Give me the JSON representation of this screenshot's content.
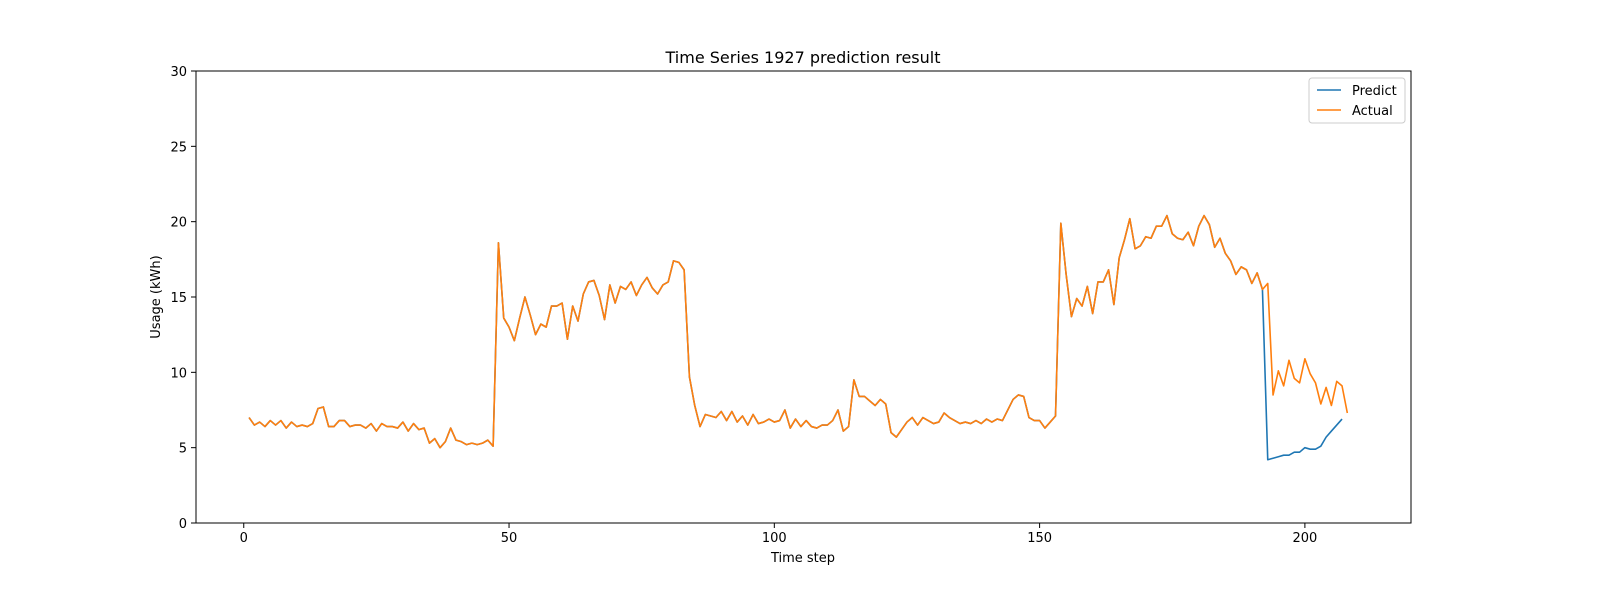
{
  "chart_data": {
    "type": "line",
    "title": "Time Series 1927 prediction result",
    "xlabel": "Time step",
    "ylabel": "Usage (kWh)",
    "xlim": [
      -9,
      220
    ],
    "ylim": [
      0,
      30
    ],
    "x_ticks": [
      0,
      50,
      100,
      150,
      200
    ],
    "y_ticks": [
      0,
      5,
      10,
      15,
      20,
      25,
      30
    ],
    "grid": false,
    "legend_position": "top-right",
    "x_start": 1,
    "series": [
      {
        "name": "Predict",
        "color": "#1f77b4",
        "values": [
          7.0,
          6.5,
          6.7,
          6.4,
          6.8,
          6.5,
          6.8,
          6.3,
          6.7,
          6.4,
          6.5,
          6.4,
          6.6,
          7.6,
          7.7,
          6.4,
          6.4,
          6.8,
          6.8,
          6.4,
          6.5,
          6.5,
          6.3,
          6.6,
          6.1,
          6.6,
          6.4,
          6.4,
          6.3,
          6.7,
          6.1,
          6.6,
          6.2,
          6.3,
          5.3,
          5.6,
          5.0,
          5.4,
          6.3,
          5.5,
          5.4,
          5.2,
          5.3,
          5.2,
          5.3,
          5.5,
          5.1,
          18.6,
          13.6,
          13.0,
          12.1,
          13.6,
          15.0,
          13.8,
          12.5,
          13.2,
          13.0,
          14.4,
          14.4,
          14.6,
          12.2,
          14.4,
          13.4,
          15.2,
          16.0,
          16.1,
          15.1,
          13.5,
          15.8,
          14.6,
          15.7,
          15.5,
          16.0,
          15.1,
          15.8,
          16.3,
          15.6,
          15.2,
          15.8,
          16.0,
          17.4,
          17.3,
          16.8,
          9.7,
          7.8,
          6.4,
          7.2,
          7.1,
          7.0,
          7.4,
          6.8,
          7.4,
          6.7,
          7.1,
          6.5,
          7.2,
          6.6,
          6.7,
          6.9,
          6.7,
          6.8,
          7.5,
          6.3,
          6.9,
          6.4,
          6.8,
          6.4,
          6.3,
          6.5,
          6.5,
          6.8,
          7.5,
          6.1,
          6.4,
          9.5,
          8.4,
          8.4,
          8.1,
          7.8,
          8.2,
          7.9,
          6.0,
          5.7,
          6.2,
          6.7,
          7.0,
          6.5,
          7.0,
          6.8,
          6.6,
          6.7,
          7.3,
          7.0,
          6.8,
          6.6,
          6.7,
          6.6,
          6.8,
          6.6,
          6.9,
          6.7,
          6.9,
          6.8,
          7.5,
          8.2,
          8.5,
          8.4,
          7.0,
          6.8,
          6.8,
          6.3,
          6.7,
          7.1,
          19.9,
          16.5,
          13.7,
          14.9,
          14.4,
          15.7,
          13.9,
          16.0,
          16.0,
          16.8,
          14.5,
          17.6,
          18.8,
          20.2,
          18.2,
          18.4,
          19.0,
          18.9,
          19.7,
          19.7,
          20.4,
          19.2,
          18.9,
          18.8,
          19.3,
          18.4,
          19.7,
          20.4,
          19.8,
          18.3,
          18.9,
          17.9,
          17.4,
          16.5,
          17.0,
          16.8,
          15.9,
          16.6,
          15.5,
          4.2,
          4.3,
          4.4,
          4.5,
          4.5,
          4.7,
          4.7,
          5.0,
          4.9,
          4.9,
          5.1,
          5.7,
          6.1,
          6.5,
          6.9
        ]
      },
      {
        "name": "Actual",
        "color": "#ff7f0e",
        "values": [
          7.0,
          6.5,
          6.7,
          6.4,
          6.8,
          6.5,
          6.8,
          6.3,
          6.7,
          6.4,
          6.5,
          6.4,
          6.6,
          7.6,
          7.7,
          6.4,
          6.4,
          6.8,
          6.8,
          6.4,
          6.5,
          6.5,
          6.3,
          6.6,
          6.1,
          6.6,
          6.4,
          6.4,
          6.3,
          6.7,
          6.1,
          6.6,
          6.2,
          6.3,
          5.3,
          5.6,
          5.0,
          5.4,
          6.3,
          5.5,
          5.4,
          5.2,
          5.3,
          5.2,
          5.3,
          5.5,
          5.1,
          18.6,
          13.6,
          13.0,
          12.1,
          13.6,
          15.0,
          13.8,
          12.5,
          13.2,
          13.0,
          14.4,
          14.4,
          14.6,
          12.2,
          14.4,
          13.4,
          15.2,
          16.0,
          16.1,
          15.1,
          13.5,
          15.8,
          14.6,
          15.7,
          15.5,
          16.0,
          15.1,
          15.8,
          16.3,
          15.6,
          15.2,
          15.8,
          16.0,
          17.4,
          17.3,
          16.8,
          9.7,
          7.8,
          6.4,
          7.2,
          7.1,
          7.0,
          7.4,
          6.8,
          7.4,
          6.7,
          7.1,
          6.5,
          7.2,
          6.6,
          6.7,
          6.9,
          6.7,
          6.8,
          7.5,
          6.3,
          6.9,
          6.4,
          6.8,
          6.4,
          6.3,
          6.5,
          6.5,
          6.8,
          7.5,
          6.1,
          6.4,
          9.5,
          8.4,
          8.4,
          8.1,
          7.8,
          8.2,
          7.9,
          6.0,
          5.7,
          6.2,
          6.7,
          7.0,
          6.5,
          7.0,
          6.8,
          6.6,
          6.7,
          7.3,
          7.0,
          6.8,
          6.6,
          6.7,
          6.6,
          6.8,
          6.6,
          6.9,
          6.7,
          6.9,
          6.8,
          7.5,
          8.2,
          8.5,
          8.4,
          7.0,
          6.8,
          6.8,
          6.3,
          6.7,
          7.1,
          19.9,
          16.5,
          13.7,
          14.9,
          14.4,
          15.7,
          13.9,
          16.0,
          16.0,
          16.8,
          14.5,
          17.6,
          18.8,
          20.2,
          18.2,
          18.4,
          19.0,
          18.9,
          19.7,
          19.7,
          20.4,
          19.2,
          18.9,
          18.8,
          19.3,
          18.4,
          19.7,
          20.4,
          19.8,
          18.3,
          18.9,
          17.9,
          17.4,
          16.5,
          17.0,
          16.8,
          15.9,
          16.6,
          15.5,
          15.9,
          8.5,
          10.1,
          9.1,
          10.8,
          9.6,
          9.3,
          10.9,
          9.9,
          9.3,
          7.9,
          9.0,
          7.8,
          9.4,
          9.1,
          7.3
        ]
      }
    ]
  }
}
